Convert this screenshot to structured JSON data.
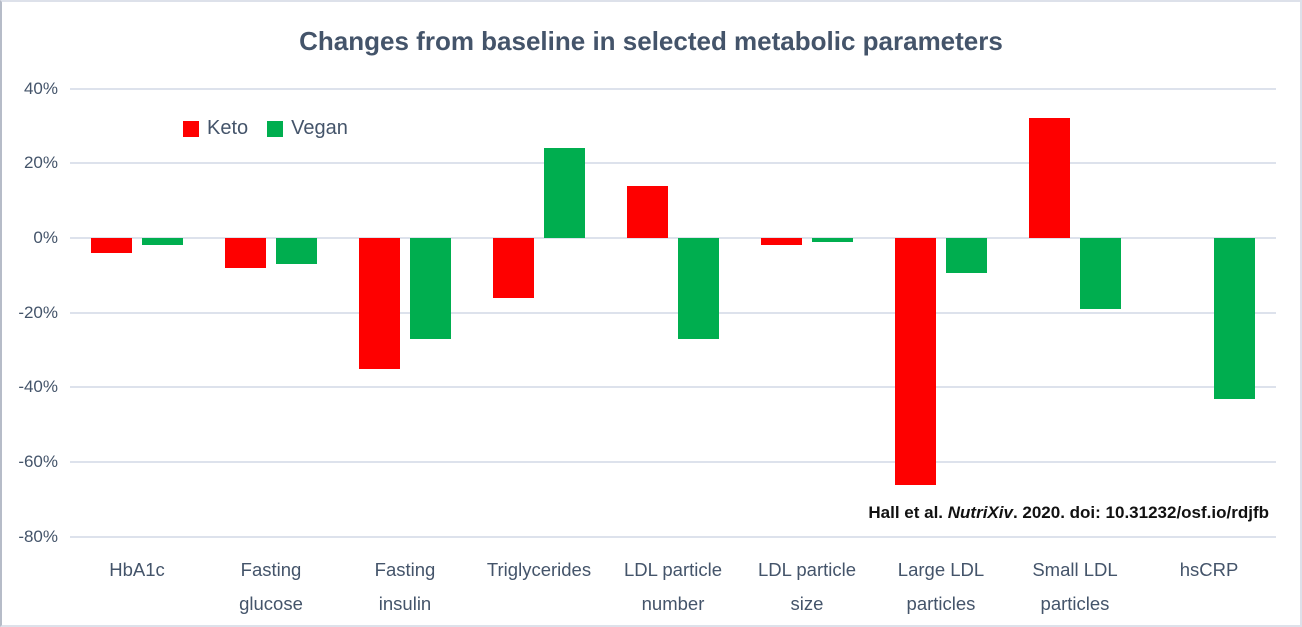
{
  "title": "Changes from baseline in selected metabolic parameters",
  "legend": {
    "keto_label": "Keto",
    "vegan_label": "Vegan"
  },
  "citation": {
    "prefix": "Hall et al. ",
    "italic": "NutriXiv",
    "suffix": ". 2020. doi: 10.31232/osf.io/rdjfb"
  },
  "colors": {
    "keto": "#fe0000",
    "vegan": "#00ae4f",
    "text": "#44546a",
    "gridline": "#dde2ec",
    "citation": "#111111"
  },
  "chart_data": {
    "type": "bar",
    "title": "Changes from baseline in selected metabolic parameters",
    "categories": [
      "HbA1c",
      "Fasting glucose",
      "Fasting insulin",
      "Triglycerides",
      "LDL particle number",
      "LDL particle size",
      "Large LDL particles",
      "Small LDL particles",
      "hsCRP"
    ],
    "series": [
      {
        "name": "Keto",
        "color_key": "keto",
        "values": [
          -4,
          -8,
          -35,
          -16,
          14,
          -2,
          -66,
          32,
          0
        ]
      },
      {
        "name": "Vegan",
        "color_key": "vegan",
        "values": [
          -2,
          -7,
          -27,
          24,
          -27,
          -1,
          -9.5,
          -19,
          -43
        ]
      }
    ],
    "unit": "%",
    "ylim": [
      -80,
      40
    ],
    "yticks": [
      40,
      20,
      0,
      -20,
      -40,
      -60,
      -80
    ],
    "ytick_labels": [
      "40%",
      "20%",
      "0%",
      "-20%",
      "-40%",
      "-60%",
      "-80%"
    ],
    "grid": true,
    "legend_position": "inside-top-left",
    "annotation": "Hall et al. NutriXiv. 2020. doi: 10.31232/osf.io/rdjfb"
  }
}
